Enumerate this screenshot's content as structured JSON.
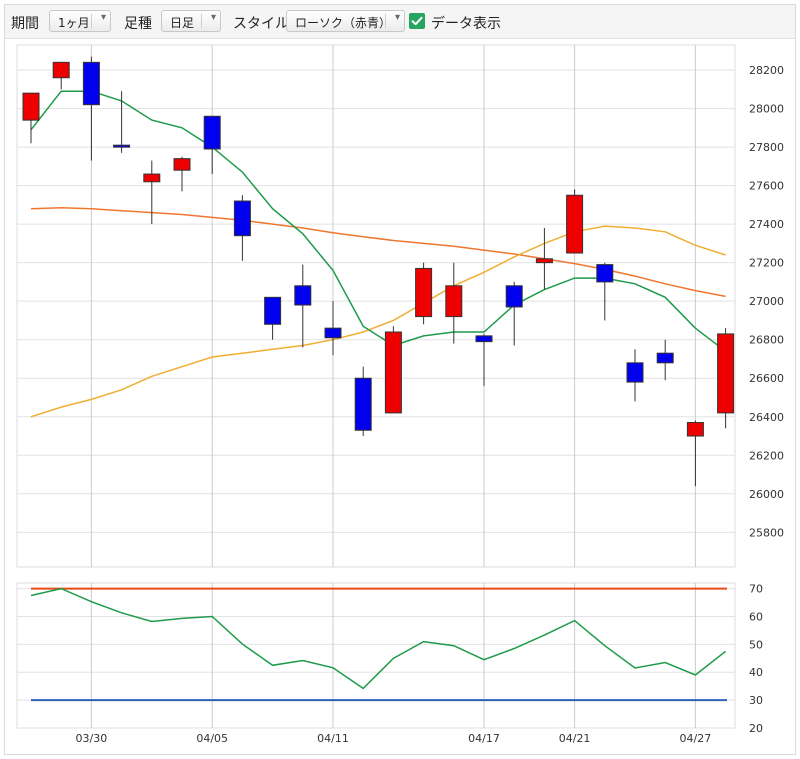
{
  "toolbar": {
    "period_label": "期間",
    "period_value": "1ヶ月",
    "candle_label": "足種",
    "candle_value": "日足",
    "style_label": "スタイル",
    "style_value": "ローソク（赤青）",
    "data_display_label": "データ表示",
    "data_display_checked": true
  },
  "chart_data": [
    {
      "type": "candlestick",
      "title": "",
      "x_tick_labels": [
        "03/30",
        "04/05",
        "04/11",
        "04/17",
        "04/21",
        "04/27"
      ],
      "x_tick_index": [
        2,
        6,
        10,
        15,
        18,
        22
      ],
      "yticks": [
        25800,
        26000,
        26200,
        26400,
        26600,
        26800,
        27000,
        27200,
        27400,
        27600,
        27800,
        28000,
        28200
      ],
      "ylim": [
        25620,
        28330
      ],
      "up_color": "#ee0000",
      "down_color": "#0000ee",
      "candles": [
        {
          "o": 27940,
          "h": 28080,
          "l": 27820,
          "c": 28080
        },
        {
          "o": 28160,
          "h": 28240,
          "l": 28100,
          "c": 28240
        },
        {
          "o": 28240,
          "h": 28270,
          "l": 27730,
          "c": 28020
        },
        {
          "o": 27810,
          "h": 28090,
          "l": 27770,
          "c": 27800
        },
        {
          "o": 27620,
          "h": 27730,
          "l": 27400,
          "c": 27660
        },
        {
          "o": 27680,
          "h": 27750,
          "l": 27570,
          "c": 27740
        },
        {
          "o": 27960,
          "h": 27960,
          "l": 27660,
          "c": 27790
        },
        {
          "o": 27520,
          "h": 27550,
          "l": 27210,
          "c": 27340
        },
        {
          "o": 27020,
          "h": 27020,
          "l": 26800,
          "c": 26880
        },
        {
          "o": 27080,
          "h": 27190,
          "l": 26760,
          "c": 26980
        },
        {
          "o": 26860,
          "h": 27000,
          "l": 26720,
          "c": 26810
        },
        {
          "o": 26600,
          "h": 26660,
          "l": 26300,
          "c": 26330
        },
        {
          "o": 26420,
          "h": 26870,
          "l": 26420,
          "c": 26840
        },
        {
          "o": 26920,
          "h": 27200,
          "l": 26880,
          "c": 27170
        },
        {
          "o": 26920,
          "h": 27200,
          "l": 26780,
          "c": 27080
        },
        {
          "o": 26820,
          "h": 26830,
          "l": 26560,
          "c": 26790
        },
        {
          "o": 27080,
          "h": 27100,
          "l": 26770,
          "c": 26970
        },
        {
          "o": 27200,
          "h": 27380,
          "l": 27060,
          "c": 27220
        },
        {
          "o": 27250,
          "h": 27580,
          "l": 27250,
          "c": 27550
        },
        {
          "o": 27190,
          "h": 27200,
          "l": 26900,
          "c": 27100
        },
        {
          "o": 26680,
          "h": 26750,
          "l": 26480,
          "c": 26580
        },
        {
          "o": 26730,
          "h": 26800,
          "l": 26590,
          "c": 26680
        },
        {
          "o": 26300,
          "h": 26380,
          "l": 26040,
          "c": 26370
        },
        {
          "o": 26420,
          "h": 26860,
          "l": 26340,
          "c": 26830
        }
      ],
      "ma_short": {
        "color": "#1e9a4b",
        "values": [
          27890,
          28090,
          28090,
          28040,
          27940,
          27900,
          27800,
          27670,
          27480,
          27350,
          27160,
          26870,
          26770,
          26820,
          26840,
          26840,
          26980,
          27060,
          27120,
          27120,
          27090,
          27020,
          26860,
          26740
        ]
      },
      "ma_mid": {
        "color": "#f0ae33",
        "values": [
          26400,
          26450,
          26490,
          26540,
          26610,
          26660,
          26710,
          26730,
          26750,
          26770,
          26800,
          26840,
          26900,
          26990,
          27080,
          27150,
          27230,
          27300,
          27360,
          27390,
          27380,
          27360,
          27290,
          27240
        ]
      },
      "ma_long": {
        "color": "#ee7730",
        "values": [
          27480,
          27485,
          27480,
          27470,
          27460,
          27450,
          27435,
          27420,
          27400,
          27380,
          27355,
          27335,
          27315,
          27300,
          27285,
          27265,
          27245,
          27220,
          27195,
          27165,
          27130,
          27090,
          27055,
          27025
        ]
      }
    },
    {
      "type": "line",
      "title": "",
      "yticks": [
        20,
        30,
        40,
        50,
        60,
        70
      ],
      "ylim": [
        20,
        72
      ],
      "upper_line": {
        "value": 70,
        "color": "#e84a1a"
      },
      "lower_line": {
        "value": 30,
        "color": "#2a63b8"
      },
      "series": [
        {
          "color": "#1e9a4b",
          "values": [
            67.5,
            70,
            65.3,
            61.3,
            58.2,
            59.3,
            60,
            50.1,
            42.5,
            44.2,
            41.6,
            34.2,
            45,
            51,
            49.5,
            44.5,
            48.5,
            53.3,
            58.5,
            49.5,
            41.5,
            43.5,
            39,
            47.5
          ]
        }
      ]
    }
  ]
}
